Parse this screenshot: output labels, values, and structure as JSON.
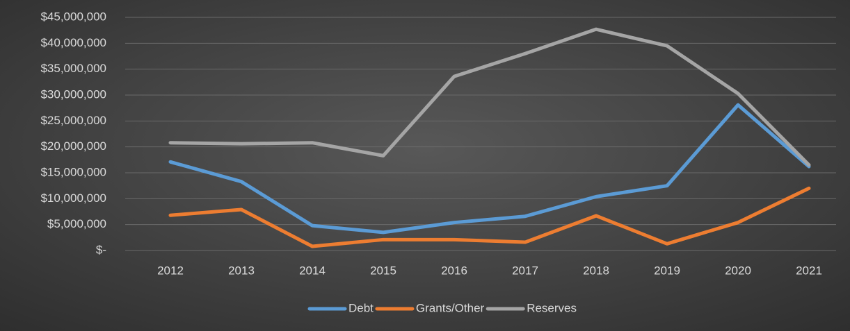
{
  "chart_data": {
    "type": "line",
    "categories": [
      "2012",
      "2013",
      "2014",
      "2015",
      "2016",
      "2017",
      "2018",
      "2019",
      "2020",
      "2021"
    ],
    "series": [
      {
        "name": "Debt",
        "color": "#5b9bd5",
        "values": [
          17100000,
          13300000,
          4800000,
          3500000,
          5400000,
          6600000,
          10400000,
          12500000,
          28100000,
          16200000
        ]
      },
      {
        "name": "Grants/Other",
        "color": "#ed7d31",
        "values": [
          6800000,
          7900000,
          800000,
          2100000,
          2100000,
          1600000,
          6700000,
          1300000,
          5400000,
          12000000
        ]
      },
      {
        "name": "Reserves",
        "color": "#a5a5a5",
        "values": [
          20800000,
          20600000,
          20800000,
          18300000,
          33600000,
          38000000,
          42700000,
          39500000,
          30300000,
          16500000
        ]
      }
    ],
    "ylim": [
      0,
      45000000
    ],
    "yticks": [
      {
        "value": 0,
        "label": "$-"
      },
      {
        "value": 5000000,
        "label": "$5,000,000"
      },
      {
        "value": 10000000,
        "label": "$10,000,000"
      },
      {
        "value": 15000000,
        "label": "$15,000,000"
      },
      {
        "value": 20000000,
        "label": "$20,000,000"
      },
      {
        "value": 25000000,
        "label": "$25,000,000"
      },
      {
        "value": 30000000,
        "label": "$30,000,000"
      },
      {
        "value": 35000000,
        "label": "$35,000,000"
      },
      {
        "value": 40000000,
        "label": "$40,000,000"
      },
      {
        "value": 45000000,
        "label": "$45,000,000"
      }
    ],
    "grid": true,
    "legend": "bottom"
  }
}
